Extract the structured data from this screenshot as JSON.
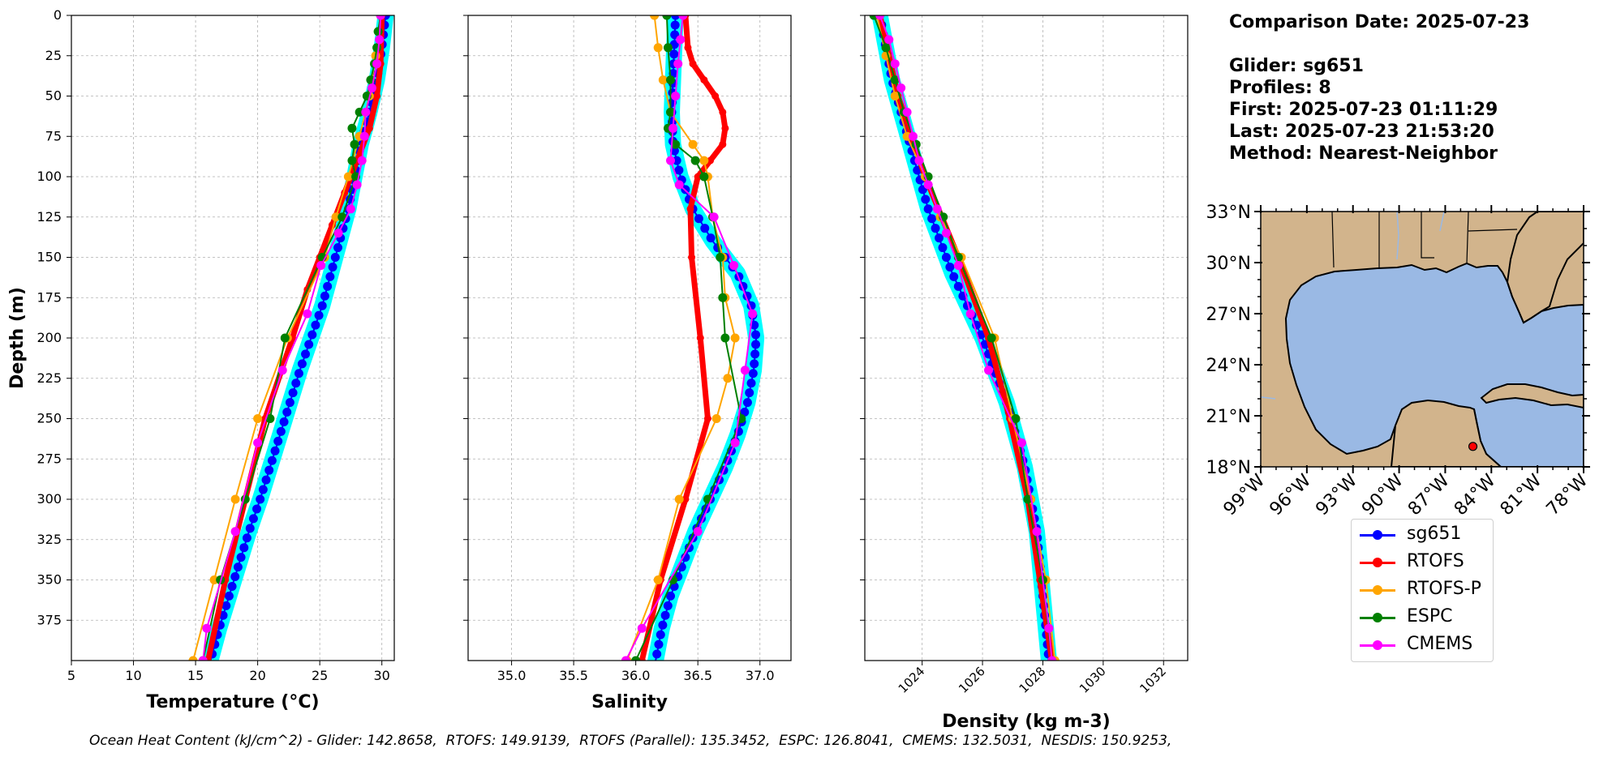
{
  "info": {
    "comparison_date": "Comparison Date: 2025-07-23",
    "glider": "Glider: sg651",
    "profiles": "Profiles: 8",
    "first": "First: 2025-07-23 01:11:29",
    "last": "Last: 2025-07-23 21:53:20",
    "method": "Method: Nearest-Neighbor"
  },
  "footer": "Ocean Heat Content (kJ/cm^2) - Glider: 142.8658,  RTOFS: 149.9139,  RTOFS (Parallel): 135.3452,  ESPC: 126.8041,  CMEMS: 132.5031,  NESDIS: 150.9253,",
  "legend": [
    {
      "name": "sg651",
      "color": "#0000ff"
    },
    {
      "name": "RTOFS",
      "color": "#ff0000"
    },
    {
      "name": "RTOFS-P",
      "color": "#ffa500"
    },
    {
      "name": "ESPC",
      "color": "#008000"
    },
    {
      "name": "CMEMS",
      "color": "#ff00ff"
    }
  ],
  "colors": {
    "band": "#00ffff",
    "land": "#d2b48c",
    "water": "#9ab9e4"
  },
  "chart_data": [
    {
      "type": "line",
      "title": "",
      "xlabel": "Temperature (°C)",
      "ylabel": "Depth (m)",
      "xlim": [
        5,
        31
      ],
      "ylim": [
        400,
        0
      ],
      "x_ticks": [
        5,
        10,
        15,
        20,
        25,
        30
      ],
      "y_ticks": [
        0,
        25,
        50,
        75,
        100,
        125,
        150,
        175,
        200,
        225,
        250,
        275,
        300,
        325,
        350,
        375
      ],
      "grid": true,
      "series": [
        {
          "name": "sg651",
          "style": "band+dots",
          "depths": [
            0,
            20,
            40,
            60,
            80,
            100,
            120,
            140,
            160,
            180,
            200,
            220,
            240,
            260,
            280,
            300,
            320,
            340,
            360,
            380,
            400
          ],
          "values": [
            30.3,
            30.0,
            29.6,
            29.0,
            28.3,
            27.8,
            27.3,
            26.6,
            25.9,
            25.2,
            24.3,
            23.4,
            22.6,
            21.8,
            21.0,
            20.2,
            19.3,
            18.5,
            17.7,
            16.9,
            16.2
          ]
        },
        {
          "name": "RTOFS",
          "style": "thick",
          "depths": [
            0,
            30,
            50,
            70,
            90,
            110,
            130,
            150,
            170,
            200,
            250,
            300,
            350,
            400
          ],
          "values": [
            30.0,
            29.9,
            29.6,
            29.0,
            28.0,
            27.0,
            26.0,
            25.0,
            24.0,
            22.8,
            20.6,
            19.0,
            17.4,
            16.0
          ]
        },
        {
          "name": "RTOFS-P",
          "depths": [
            0,
            25,
            50,
            75,
            100,
            125,
            150,
            200,
            250,
            300,
            350,
            400
          ],
          "values": [
            29.9,
            29.5,
            29.0,
            28.2,
            27.3,
            26.3,
            25.4,
            22.4,
            20.0,
            18.2,
            16.5,
            14.8
          ]
        },
        {
          "name": "ESPC",
          "depths": [
            0,
            10,
            20,
            30,
            40,
            50,
            60,
            70,
            80,
            90,
            100,
            125,
            150,
            200,
            250,
            300,
            350,
            400
          ],
          "values": [
            29.9,
            29.7,
            29.6,
            29.4,
            29.1,
            28.8,
            28.2,
            27.6,
            27.8,
            27.6,
            27.9,
            26.8,
            25.2,
            22.2,
            21.0,
            19.0,
            17.0,
            15.6
          ]
        },
        {
          "name": "CMEMS",
          "depths": [
            0,
            15,
            30,
            45,
            60,
            75,
            90,
            105,
            120,
            135,
            155,
            185,
            220,
            265,
            320,
            380,
            400
          ],
          "values": [
            29.9,
            29.8,
            29.6,
            29.2,
            28.7,
            28.6,
            28.4,
            28.0,
            27.5,
            26.5,
            25.1,
            24.0,
            22.0,
            20.0,
            18.2,
            15.9,
            15.6
          ]
        }
      ]
    },
    {
      "type": "line",
      "title": "",
      "xlabel": "Salinity",
      "ylabel": "",
      "xlim": [
        34.65,
        37.25
      ],
      "ylim": [
        400,
        0
      ],
      "x_ticks": [
        35.0,
        35.5,
        36.0,
        36.5,
        37.0
      ],
      "grid": true,
      "series": [
        {
          "name": "sg651",
          "style": "band+dots",
          "depths": [
            0,
            20,
            40,
            60,
            80,
            100,
            120,
            140,
            160,
            180,
            200,
            220,
            240,
            260,
            280,
            300,
            320,
            340,
            360,
            380,
            400
          ],
          "values": [
            36.32,
            36.31,
            36.3,
            36.29,
            36.3,
            36.36,
            36.46,
            36.62,
            36.82,
            36.93,
            36.97,
            36.95,
            36.9,
            36.82,
            36.72,
            36.6,
            36.48,
            36.38,
            36.28,
            36.21,
            36.16
          ]
        },
        {
          "name": "RTOFS",
          "style": "thick",
          "depths": [
            0,
            20,
            30,
            40,
            50,
            60,
            70,
            80,
            90,
            100,
            120,
            150,
            200,
            250,
            300,
            350,
            400
          ],
          "values": [
            36.4,
            36.42,
            36.46,
            36.55,
            36.64,
            36.7,
            36.72,
            36.7,
            36.6,
            36.5,
            36.44,
            36.45,
            36.52,
            36.58,
            36.4,
            36.2,
            36.05
          ]
        },
        {
          "name": "RTOFS-P",
          "depths": [
            0,
            20,
            40,
            60,
            80,
            90,
            100,
            125,
            150,
            175,
            200,
            225,
            250,
            300,
            350,
            400
          ],
          "values": [
            36.15,
            36.18,
            36.22,
            36.28,
            36.46,
            36.55,
            36.58,
            36.62,
            36.7,
            36.72,
            36.8,
            36.74,
            36.65,
            36.35,
            36.18,
            35.93
          ]
        },
        {
          "name": "ESPC",
          "depths": [
            0,
            20,
            40,
            60,
            70,
            80,
            90,
            100,
            125,
            150,
            175,
            200,
            250,
            300,
            350,
            400
          ],
          "values": [
            36.25,
            36.26,
            36.28,
            36.28,
            36.26,
            36.32,
            36.48,
            36.55,
            36.62,
            36.68,
            36.7,
            36.72,
            36.85,
            36.58,
            36.3,
            36.0
          ]
        },
        {
          "name": "CMEMS",
          "depths": [
            0,
            15,
            30,
            50,
            70,
            90,
            105,
            125,
            155,
            185,
            220,
            265,
            320,
            380,
            400
          ],
          "values": [
            36.38,
            36.36,
            36.34,
            36.32,
            36.3,
            36.28,
            36.35,
            36.63,
            36.79,
            36.94,
            36.88,
            36.8,
            36.5,
            36.05,
            35.92
          ]
        }
      ]
    },
    {
      "type": "line",
      "title": "",
      "xlabel": "Density (kg m-3)",
      "ylabel": "",
      "xlim": [
        1022.1,
        1032.8
      ],
      "ylim": [
        400,
        0
      ],
      "x_ticks": [
        1024,
        1026,
        1028,
        1030,
        1032
      ],
      "grid": true,
      "series": [
        {
          "name": "sg651",
          "style": "band+dots",
          "depths": [
            0,
            20,
            40,
            60,
            80,
            100,
            120,
            140,
            160,
            180,
            200,
            220,
            240,
            260,
            280,
            300,
            320,
            340,
            360,
            380,
            400
          ],
          "values": [
            1022.6,
            1022.8,
            1023.0,
            1023.3,
            1023.6,
            1023.9,
            1024.2,
            1024.6,
            1025.0,
            1025.5,
            1026.0,
            1026.4,
            1026.8,
            1027.1,
            1027.4,
            1027.6,
            1027.8,
            1027.9,
            1028.0,
            1028.1,
            1028.2
          ]
        },
        {
          "name": "RTOFS",
          "style": "thick",
          "depths": [
            0,
            50,
            100,
            150,
            200,
            250,
            300,
            350,
            400
          ],
          "values": [
            1022.6,
            1023.2,
            1024.1,
            1025.2,
            1026.2,
            1026.9,
            1027.5,
            1027.9,
            1028.3
          ]
        },
        {
          "name": "RTOFS-P",
          "depths": [
            0,
            25,
            50,
            75,
            100,
            125,
            150,
            200,
            250,
            300,
            350,
            400
          ],
          "values": [
            1022.5,
            1022.8,
            1023.1,
            1023.5,
            1024.1,
            1024.6,
            1025.3,
            1026.4,
            1027.0,
            1027.6,
            1028.1,
            1028.4
          ]
        },
        {
          "name": "ESPC",
          "depths": [
            0,
            20,
            40,
            60,
            80,
            100,
            125,
            150,
            200,
            250,
            300,
            350,
            400
          ],
          "values": [
            1022.4,
            1022.8,
            1023.1,
            1023.4,
            1023.8,
            1024.2,
            1024.7,
            1025.2,
            1026.3,
            1027.1,
            1027.5,
            1028.0,
            1028.3
          ]
        },
        {
          "name": "CMEMS",
          "depths": [
            0,
            15,
            30,
            45,
            60,
            75,
            90,
            105,
            120,
            135,
            155,
            185,
            220,
            265,
            320,
            380,
            400
          ],
          "values": [
            1022.6,
            1022.9,
            1023.1,
            1023.3,
            1023.5,
            1023.7,
            1023.9,
            1024.2,
            1024.5,
            1024.8,
            1025.2,
            1025.6,
            1026.2,
            1027.3,
            1027.8,
            1028.2,
            1028.3
          ]
        }
      ]
    },
    {
      "type": "map",
      "title": "",
      "lon_range": [
        -99,
        -78
      ],
      "lat_range": [
        18,
        33
      ],
      "lon_tick_labels": [
        "99°W",
        "96°W",
        "93°W",
        "90°W",
        "87°W",
        "84°W",
        "81°W",
        "78°W"
      ],
      "lat_tick_labels": [
        "18°N",
        "21°N",
        "24°N",
        "27°N",
        "30°N",
        "33°N"
      ],
      "lon_ticks": [
        -99,
        -96,
        -93,
        -90,
        -87,
        -84,
        -81,
        -78
      ],
      "lat_ticks": [
        18,
        21,
        24,
        27,
        30,
        33
      ],
      "glider_location": {
        "lon": -85.2,
        "lat": 19.2
      }
    }
  ]
}
